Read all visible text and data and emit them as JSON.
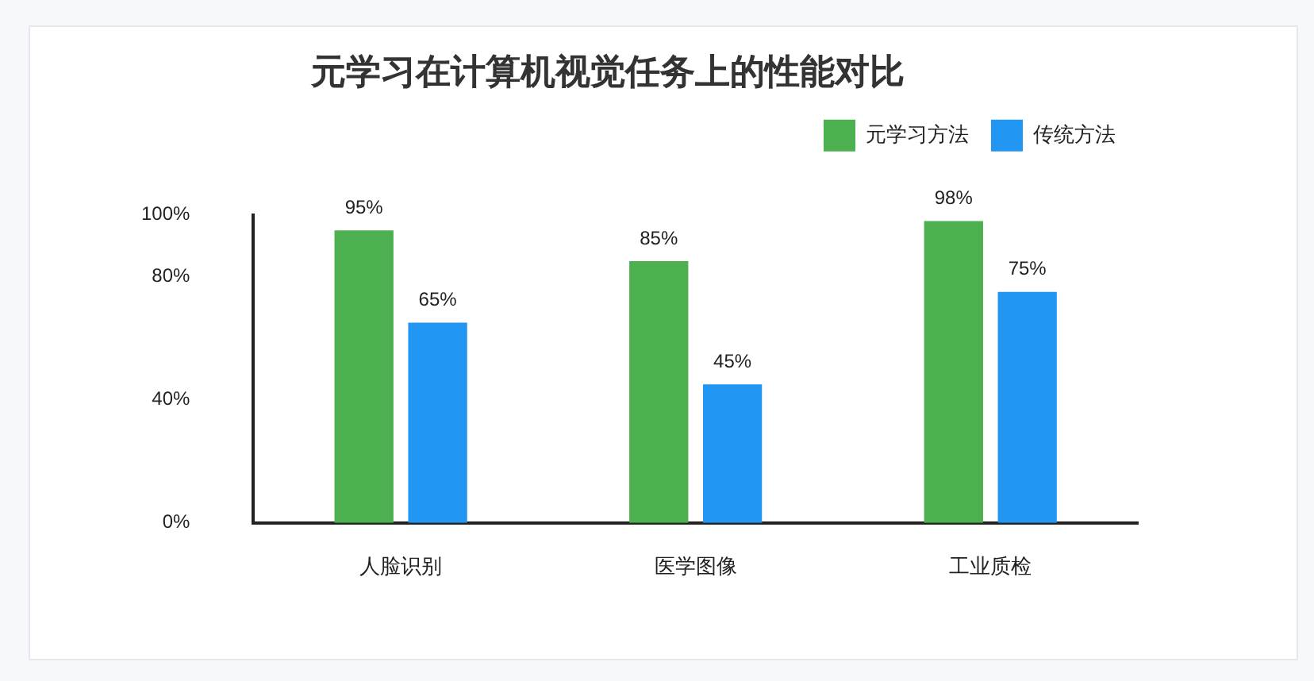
{
  "chart_data": {
    "type": "bar",
    "title": "元学习在计算机视觉任务上的性能对比",
    "categories": [
      "人脸识别",
      "医学图像",
      "工业质检"
    ],
    "series": [
      {
        "name": "元学习方法",
        "color": "#4caf50",
        "values": [
          95,
          85,
          98
        ],
        "value_labels": [
          "95%",
          "85%",
          "98%"
        ]
      },
      {
        "name": "传统方法",
        "color": "#2196f3",
        "values": [
          65,
          45,
          75
        ],
        "value_labels": [
          "65%",
          "45%",
          "75%"
        ]
      }
    ],
    "ylim": [
      0,
      100
    ],
    "yticks": [
      {
        "value": 0,
        "label": "0%"
      },
      {
        "value": 40,
        "label": "40%"
      },
      {
        "value": 80,
        "label": "80%"
      },
      {
        "value": 100,
        "label": "100%"
      }
    ],
    "grid": false,
    "legend": "top right"
  }
}
